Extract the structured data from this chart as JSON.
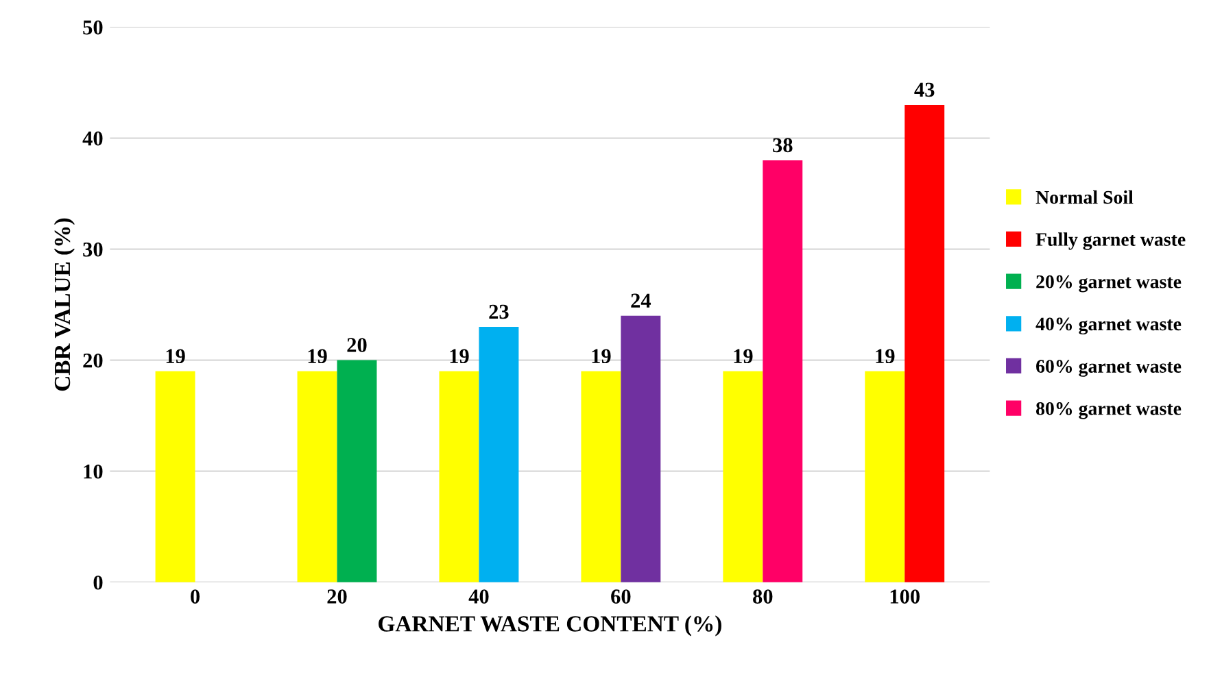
{
  "chart_data": {
    "type": "bar",
    "xlabel": "GARNET WASTE CONTENT (%)",
    "ylabel": "CBR VALUE (%)",
    "categories": [
      "0",
      "20",
      "40",
      "60",
      "80",
      "100"
    ],
    "series": [
      {
        "name": "Normal Soil",
        "color": "#ffff00",
        "values": [
          19,
          19,
          19,
          19,
          19,
          19
        ]
      },
      {
        "name": "Fully garnet waste",
        "color": "#ff0000",
        "values": [
          null,
          null,
          null,
          null,
          null,
          43
        ]
      },
      {
        "name": "20% garnet waste",
        "color": "#00b050",
        "values": [
          null,
          20,
          null,
          null,
          null,
          null
        ]
      },
      {
        "name": "40% garnet waste",
        "color": "#00b0f0",
        "values": [
          null,
          null,
          23,
          null,
          null,
          null
        ]
      },
      {
        "name": "60% garnet waste",
        "color": "#7030a0",
        "values": [
          null,
          null,
          null,
          24,
          null,
          null
        ]
      },
      {
        "name": "80% garnet waste",
        "color": "#ff0066",
        "values": [
          null,
          null,
          null,
          null,
          38,
          null
        ]
      }
    ],
    "ylim": [
      0,
      50
    ],
    "yticks": [
      0,
      10,
      20,
      30,
      40,
      50
    ],
    "grid": "y",
    "legend": "right",
    "data_labels": true
  }
}
